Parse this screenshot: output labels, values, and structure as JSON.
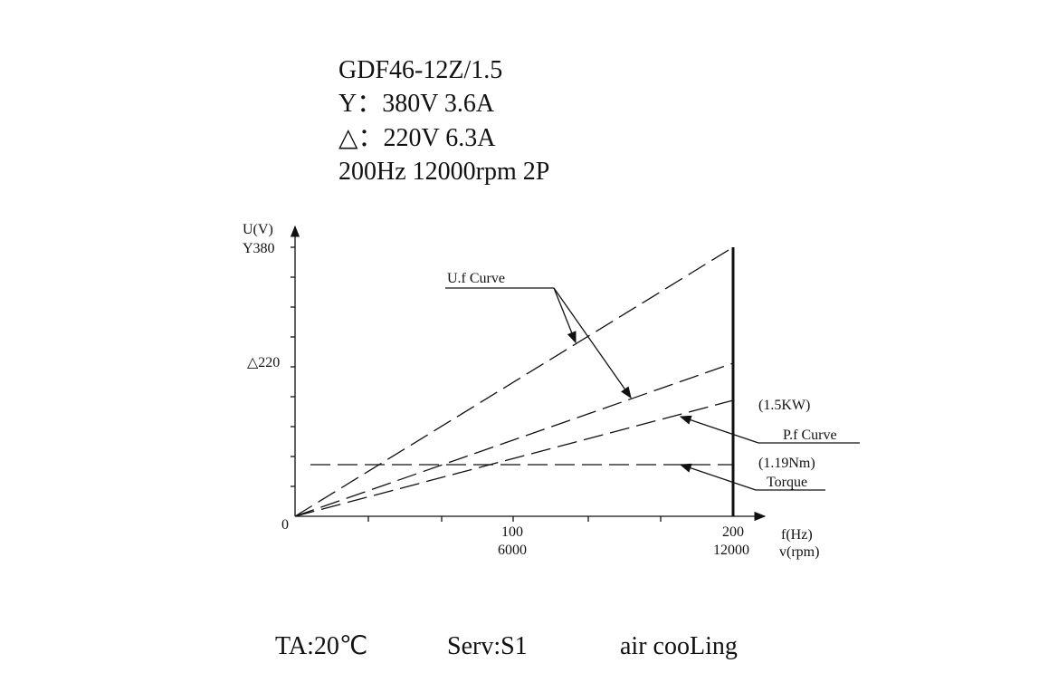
{
  "header": {
    "model": "GDF46-12Z/1.5",
    "star": "Y：380V 3.6A",
    "delta": "△：220V 6.3A",
    "rating": "200Hz 12000rpm 2P"
  },
  "axes": {
    "y_title": "U(V)",
    "y_star": "Y380",
    "y_delta": "△220",
    "origin": "0",
    "x_mid_hz": "100",
    "x_mid_rpm": "6000",
    "x_end_hz": "200",
    "x_end_rpm": "12000",
    "x_title_hz": "f(Hz)",
    "x_title_rpm": "v(rpm)"
  },
  "labels": {
    "uf": "U.f Curve",
    "power": "(1.5KW)",
    "pf": "P.f Curve",
    "torque_value": "(1.19Nm)",
    "torque": "Torque"
  },
  "footer": {
    "ambient": "TA:20℃",
    "duty": "Serv:S1",
    "cooling": "air cooLing"
  }
}
